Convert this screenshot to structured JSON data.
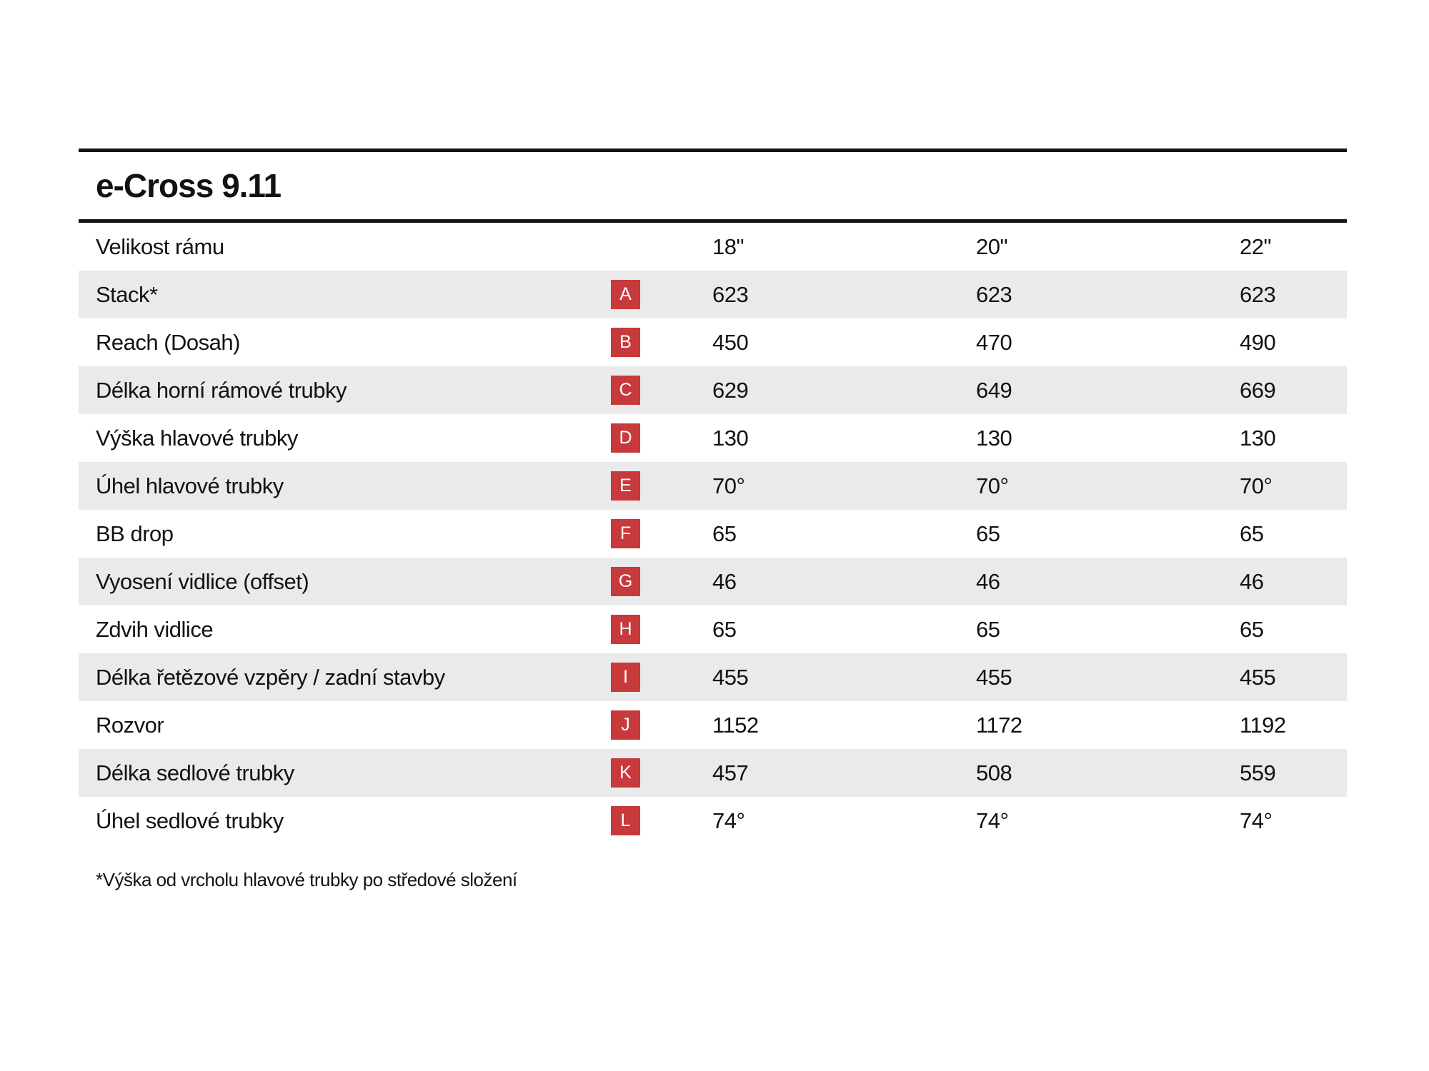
{
  "title": "e-Cross 9.11",
  "table": {
    "header": {
      "label": "Velikost rámu",
      "sizes": [
        "18\"",
        "20\"",
        "22\""
      ]
    },
    "rows": [
      {
        "label": "Stack*",
        "badge": "A",
        "values": [
          "623",
          "623",
          "623"
        ]
      },
      {
        "label": "Reach (Dosah)",
        "badge": "B",
        "values": [
          "450",
          "470",
          "490"
        ]
      },
      {
        "label": "Délka horní rámové trubky",
        "badge": "C",
        "values": [
          "629",
          "649",
          "669"
        ]
      },
      {
        "label": "Výška hlavové trubky",
        "badge": "D",
        "values": [
          "130",
          "130",
          "130"
        ]
      },
      {
        "label": "Úhel hlavové trubky",
        "badge": "E",
        "values": [
          "70°",
          "70°",
          "70°"
        ]
      },
      {
        "label": "BB drop",
        "badge": "F",
        "values": [
          "65",
          "65",
          "65"
        ]
      },
      {
        "label": "Vyosení vidlice (offset)",
        "badge": "G",
        "values": [
          "46",
          "46",
          "46"
        ]
      },
      {
        "label": "Zdvih vidlice",
        "badge": "H",
        "values": [
          "65",
          "65",
          "65"
        ]
      },
      {
        "label": "Délka řetězové vzpěry / zadní stavby",
        "badge": "I",
        "values": [
          "455",
          "455",
          "455"
        ]
      },
      {
        "label": "Rozvor",
        "badge": "J",
        "values": [
          "1152",
          "1172",
          "1192"
        ]
      },
      {
        "label": "Délka sedlové trubky",
        "badge": "K",
        "values": [
          "457",
          "508",
          "559"
        ]
      },
      {
        "label": "Úhel sedlové trubky",
        "badge": "L",
        "values": [
          "74°",
          "74°",
          "74°"
        ]
      }
    ]
  },
  "footnote": "*Výška od vrcholu hlavové trubky po středové složení",
  "colors": {
    "badge_red": "#c8393c",
    "row_alt_gray": "#eaeaea",
    "rule_black": "#141414",
    "text": "#121212"
  }
}
